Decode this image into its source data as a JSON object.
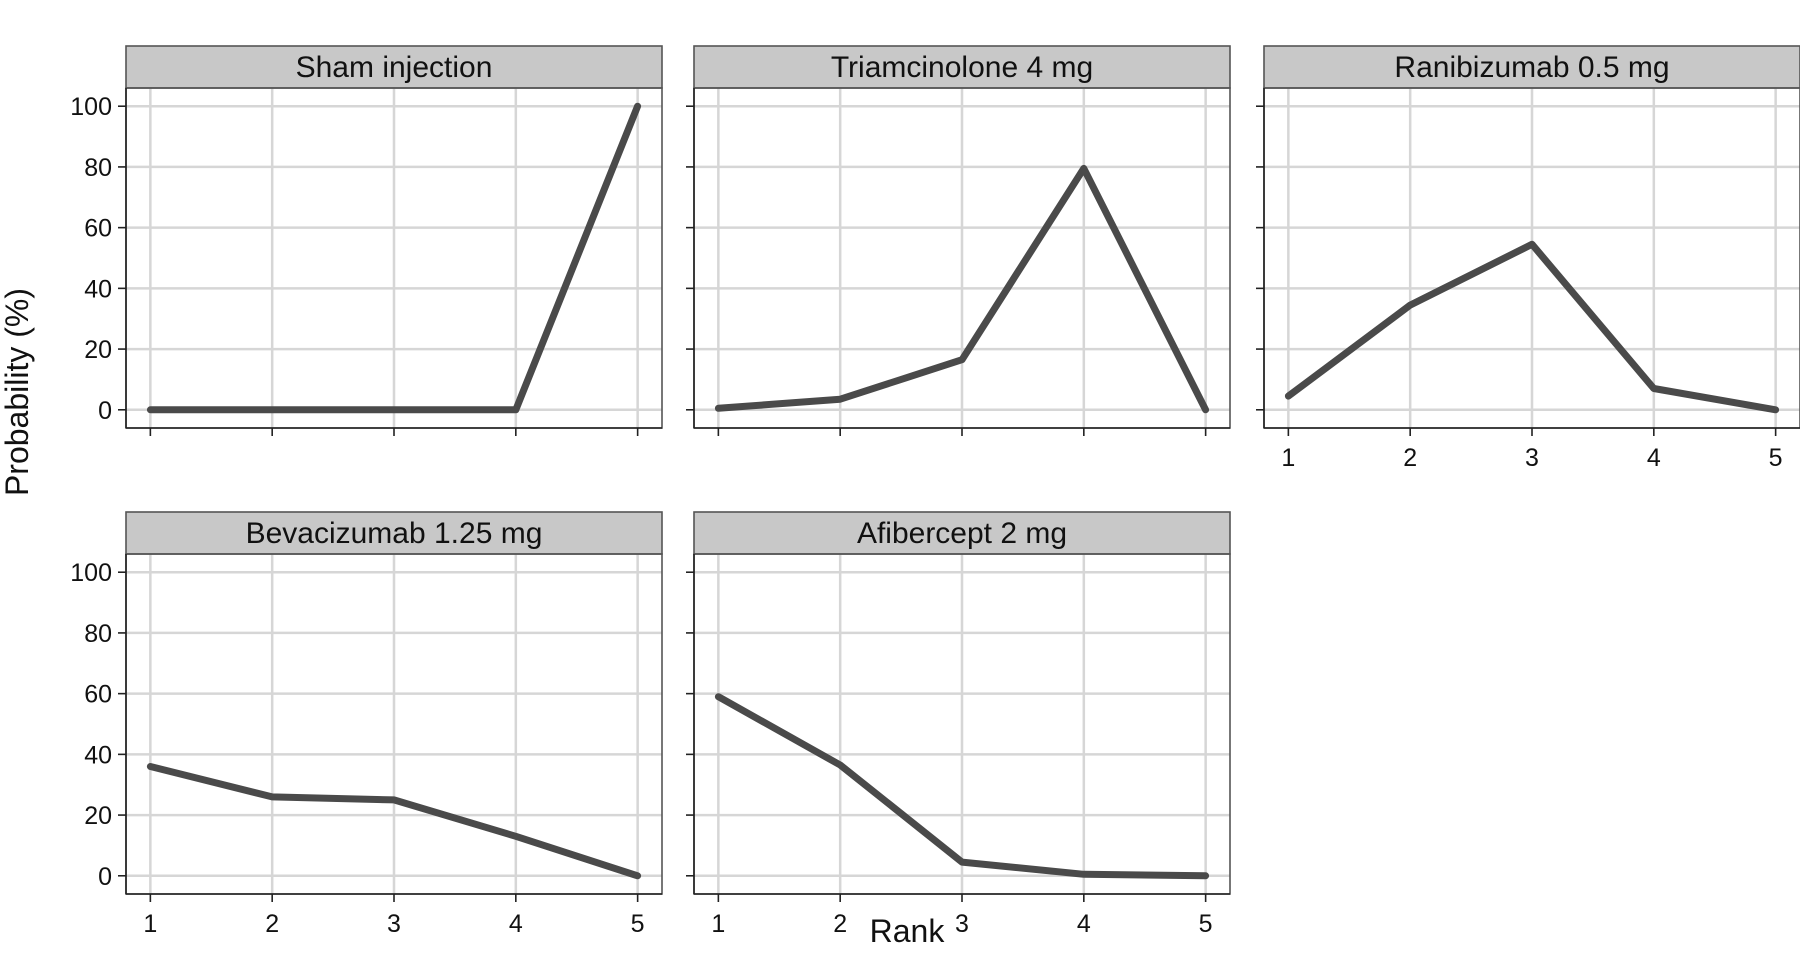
{
  "chart_data": {
    "type": "line",
    "layout": "small-multiples",
    "xlabel": "Rank",
    "ylabel": "Probability (%)",
    "x": [
      1,
      2,
      3,
      4,
      5
    ],
    "xlim": [
      0.8,
      5.2
    ],
    "ylim": [
      -6,
      106
    ],
    "yticks": [
      0,
      20,
      40,
      60,
      80,
      100
    ],
    "xticks": [
      1,
      2,
      3,
      4,
      5
    ],
    "grid": true,
    "line_color": "#4a4a4a",
    "strip_color": "#c8c8c8",
    "panels": [
      {
        "title": "Sham injection",
        "values": [
          0,
          0,
          0,
          0,
          100
        ],
        "show_xticks": false,
        "show_yticks": true
      },
      {
        "title": "Triamcinolone 4 mg",
        "values": [
          0.5,
          3.5,
          16.5,
          79.5,
          0
        ],
        "show_xticks": false,
        "show_yticks": false
      },
      {
        "title": "Ranibizumab 0.5 mg",
        "values": [
          4.5,
          34.5,
          54.5,
          7,
          0
        ],
        "show_xticks": true,
        "show_yticks": false
      },
      {
        "title": "Bevacizumab 1.25 mg",
        "values": [
          36,
          26,
          25,
          13,
          0
        ],
        "show_xticks": true,
        "show_yticks": true
      },
      {
        "title": "Afibercept 2 mg",
        "values": [
          59,
          36.5,
          4.5,
          0.5,
          0
        ],
        "show_xticks": true,
        "show_yticks": false
      }
    ]
  }
}
